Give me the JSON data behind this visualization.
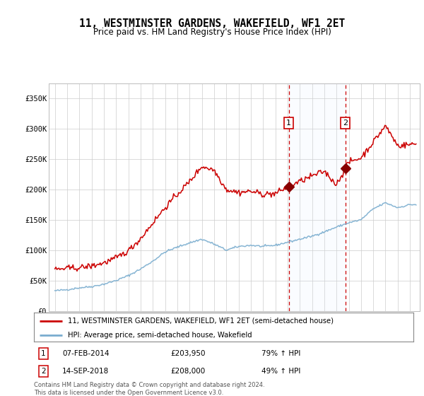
{
  "title": "11, WESTMINSTER GARDENS, WAKEFIELD, WF1 2ET",
  "subtitle": "Price paid vs. HM Land Registry's House Price Index (HPI)",
  "legend_line1": "11, WESTMINSTER GARDENS, WAKEFIELD, WF1 2ET (semi-detached house)",
  "legend_line2": "HPI: Average price, semi-detached house, Wakefield",
  "transaction1_date": "07-FEB-2014",
  "transaction1_price": "£203,950",
  "transaction1_hpi": "79% ↑ HPI",
  "transaction1_year": 2014.1,
  "transaction2_date": "14-SEP-2018",
  "transaction2_price": "£208,000",
  "transaction2_hpi": "49% ↑ HPI",
  "transaction2_year": 2018.72,
  "red_line_color": "#cc0000",
  "blue_line_color": "#7aadcf",
  "marker_color": "#880000",
  "vline_color": "#cc0000",
  "shade_color": "#ddeeff",
  "grid_color": "#cccccc",
  "background_color": "#ffffff",
  "ylim": [
    0,
    375000
  ],
  "yticks": [
    0,
    50000,
    100000,
    150000,
    200000,
    250000,
    300000,
    350000
  ],
  "footnote": "Contains HM Land Registry data © Crown copyright and database right 2024.\nThis data is licensed under the Open Government Licence v3.0.",
  "hpi_base_years": [
    1995.0,
    1996.0,
    1997.0,
    1998.0,
    1999.0,
    2000.0,
    2001.0,
    2002.0,
    2003.0,
    2004.0,
    2005.0,
    2006.0,
    2007.0,
    2008.0,
    2009.0,
    2010.0,
    2011.0,
    2012.0,
    2013.0,
    2014.0,
    2015.0,
    2016.0,
    2017.0,
    2018.0,
    2019.0,
    2020.0,
    2021.0,
    2022.0,
    2023.0,
    2024.0
  ],
  "hpi_base_values": [
    33000,
    35000,
    38000,
    40000,
    44000,
    50000,
    58000,
    69000,
    82000,
    97000,
    105000,
    112000,
    118000,
    110000,
    100000,
    106000,
    108000,
    106000,
    108000,
    113000,
    118000,
    123000,
    130000,
    138000,
    145000,
    150000,
    168000,
    178000,
    170000,
    175000
  ],
  "red_base_years": [
    1995.0,
    1996.0,
    1997.0,
    1998.0,
    1999.0,
    2000.0,
    2001.0,
    2002.0,
    2003.0,
    2004.0,
    2005.0,
    2006.0,
    2007.0,
    2008.0,
    2009.0,
    2010.0,
    2011.0,
    2012.0,
    2013.0,
    2014.0,
    2015.0,
    2016.0,
    2017.0,
    2018.0,
    2019.0,
    2020.0,
    2021.0,
    2022.0,
    2023.0,
    2024.5
  ],
  "red_base_values": [
    68000,
    70000,
    71000,
    74000,
    79000,
    87000,
    99000,
    119000,
    145000,
    170000,
    192000,
    213000,
    238000,
    232000,
    200000,
    195000,
    197000,
    192000,
    193000,
    203950,
    213000,
    222000,
    230000,
    208000,
    245000,
    252000,
    278000,
    305000,
    272000,
    275000
  ]
}
